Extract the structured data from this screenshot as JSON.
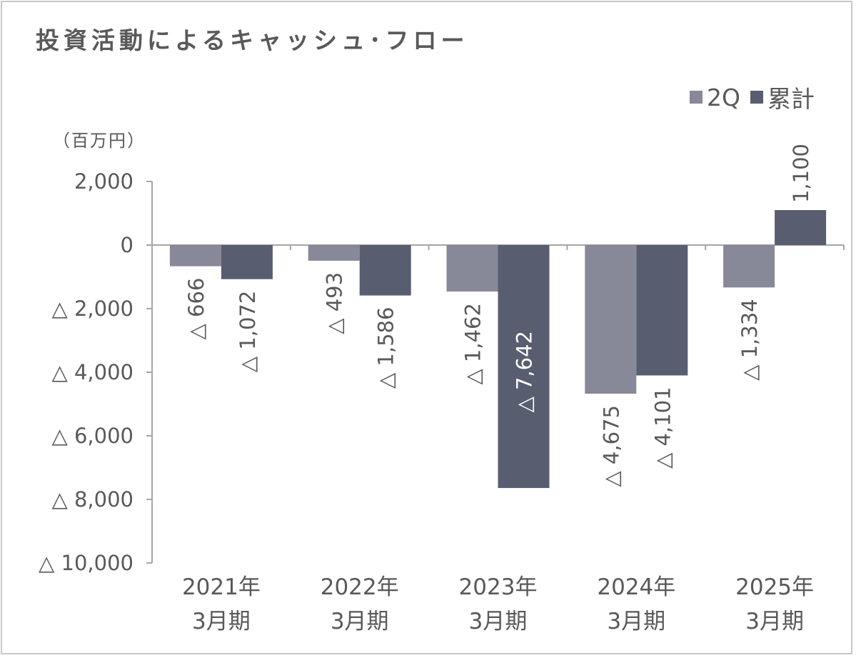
{
  "title": "投資活動によるキャッシュ･フロー",
  "unit_label": "（百万円）",
  "colors": {
    "q2": "#878898",
    "cumulative": "#585d70",
    "axis": "#a6a6a6",
    "text": "#595959"
  },
  "chart_data": {
    "type": "bar",
    "title": "投資活動によるキャッシュ･フロー",
    "ylabel": "（百万円）",
    "ylim": [
      -10000,
      2000
    ],
    "yticks": [
      2000,
      0,
      -2000,
      -4000,
      -6000,
      -8000,
      -10000
    ],
    "ytick_labels": [
      "2,000",
      "0",
      "△ 2,000",
      "△ 4,000",
      "△ 6,000",
      "△ 8,000",
      "△ 10,000"
    ],
    "categories": [
      [
        "2021年",
        "3月期"
      ],
      [
        "2022年",
        "3月期"
      ],
      [
        "2023年",
        "3月期"
      ],
      [
        "2024年",
        "3月期"
      ],
      [
        "2025年",
        "3月期"
      ]
    ],
    "legend_position": "top-right",
    "series": [
      {
        "name": "2Q",
        "values": [
          -666,
          -493,
          -1462,
          -4675,
          -1334
        ],
        "labels": [
          "△ 666",
          "△ 493",
          "△ 1,462",
          "△ 4,675",
          "△ 1,334"
        ]
      },
      {
        "name": "累計",
        "values": [
          -1072,
          -1586,
          -7642,
          -4101,
          1100
        ],
        "labels": [
          "△ 1,072",
          "△ 1,586",
          "△ 7,642",
          "△ 4,101",
          "1,100"
        ]
      }
    ]
  }
}
